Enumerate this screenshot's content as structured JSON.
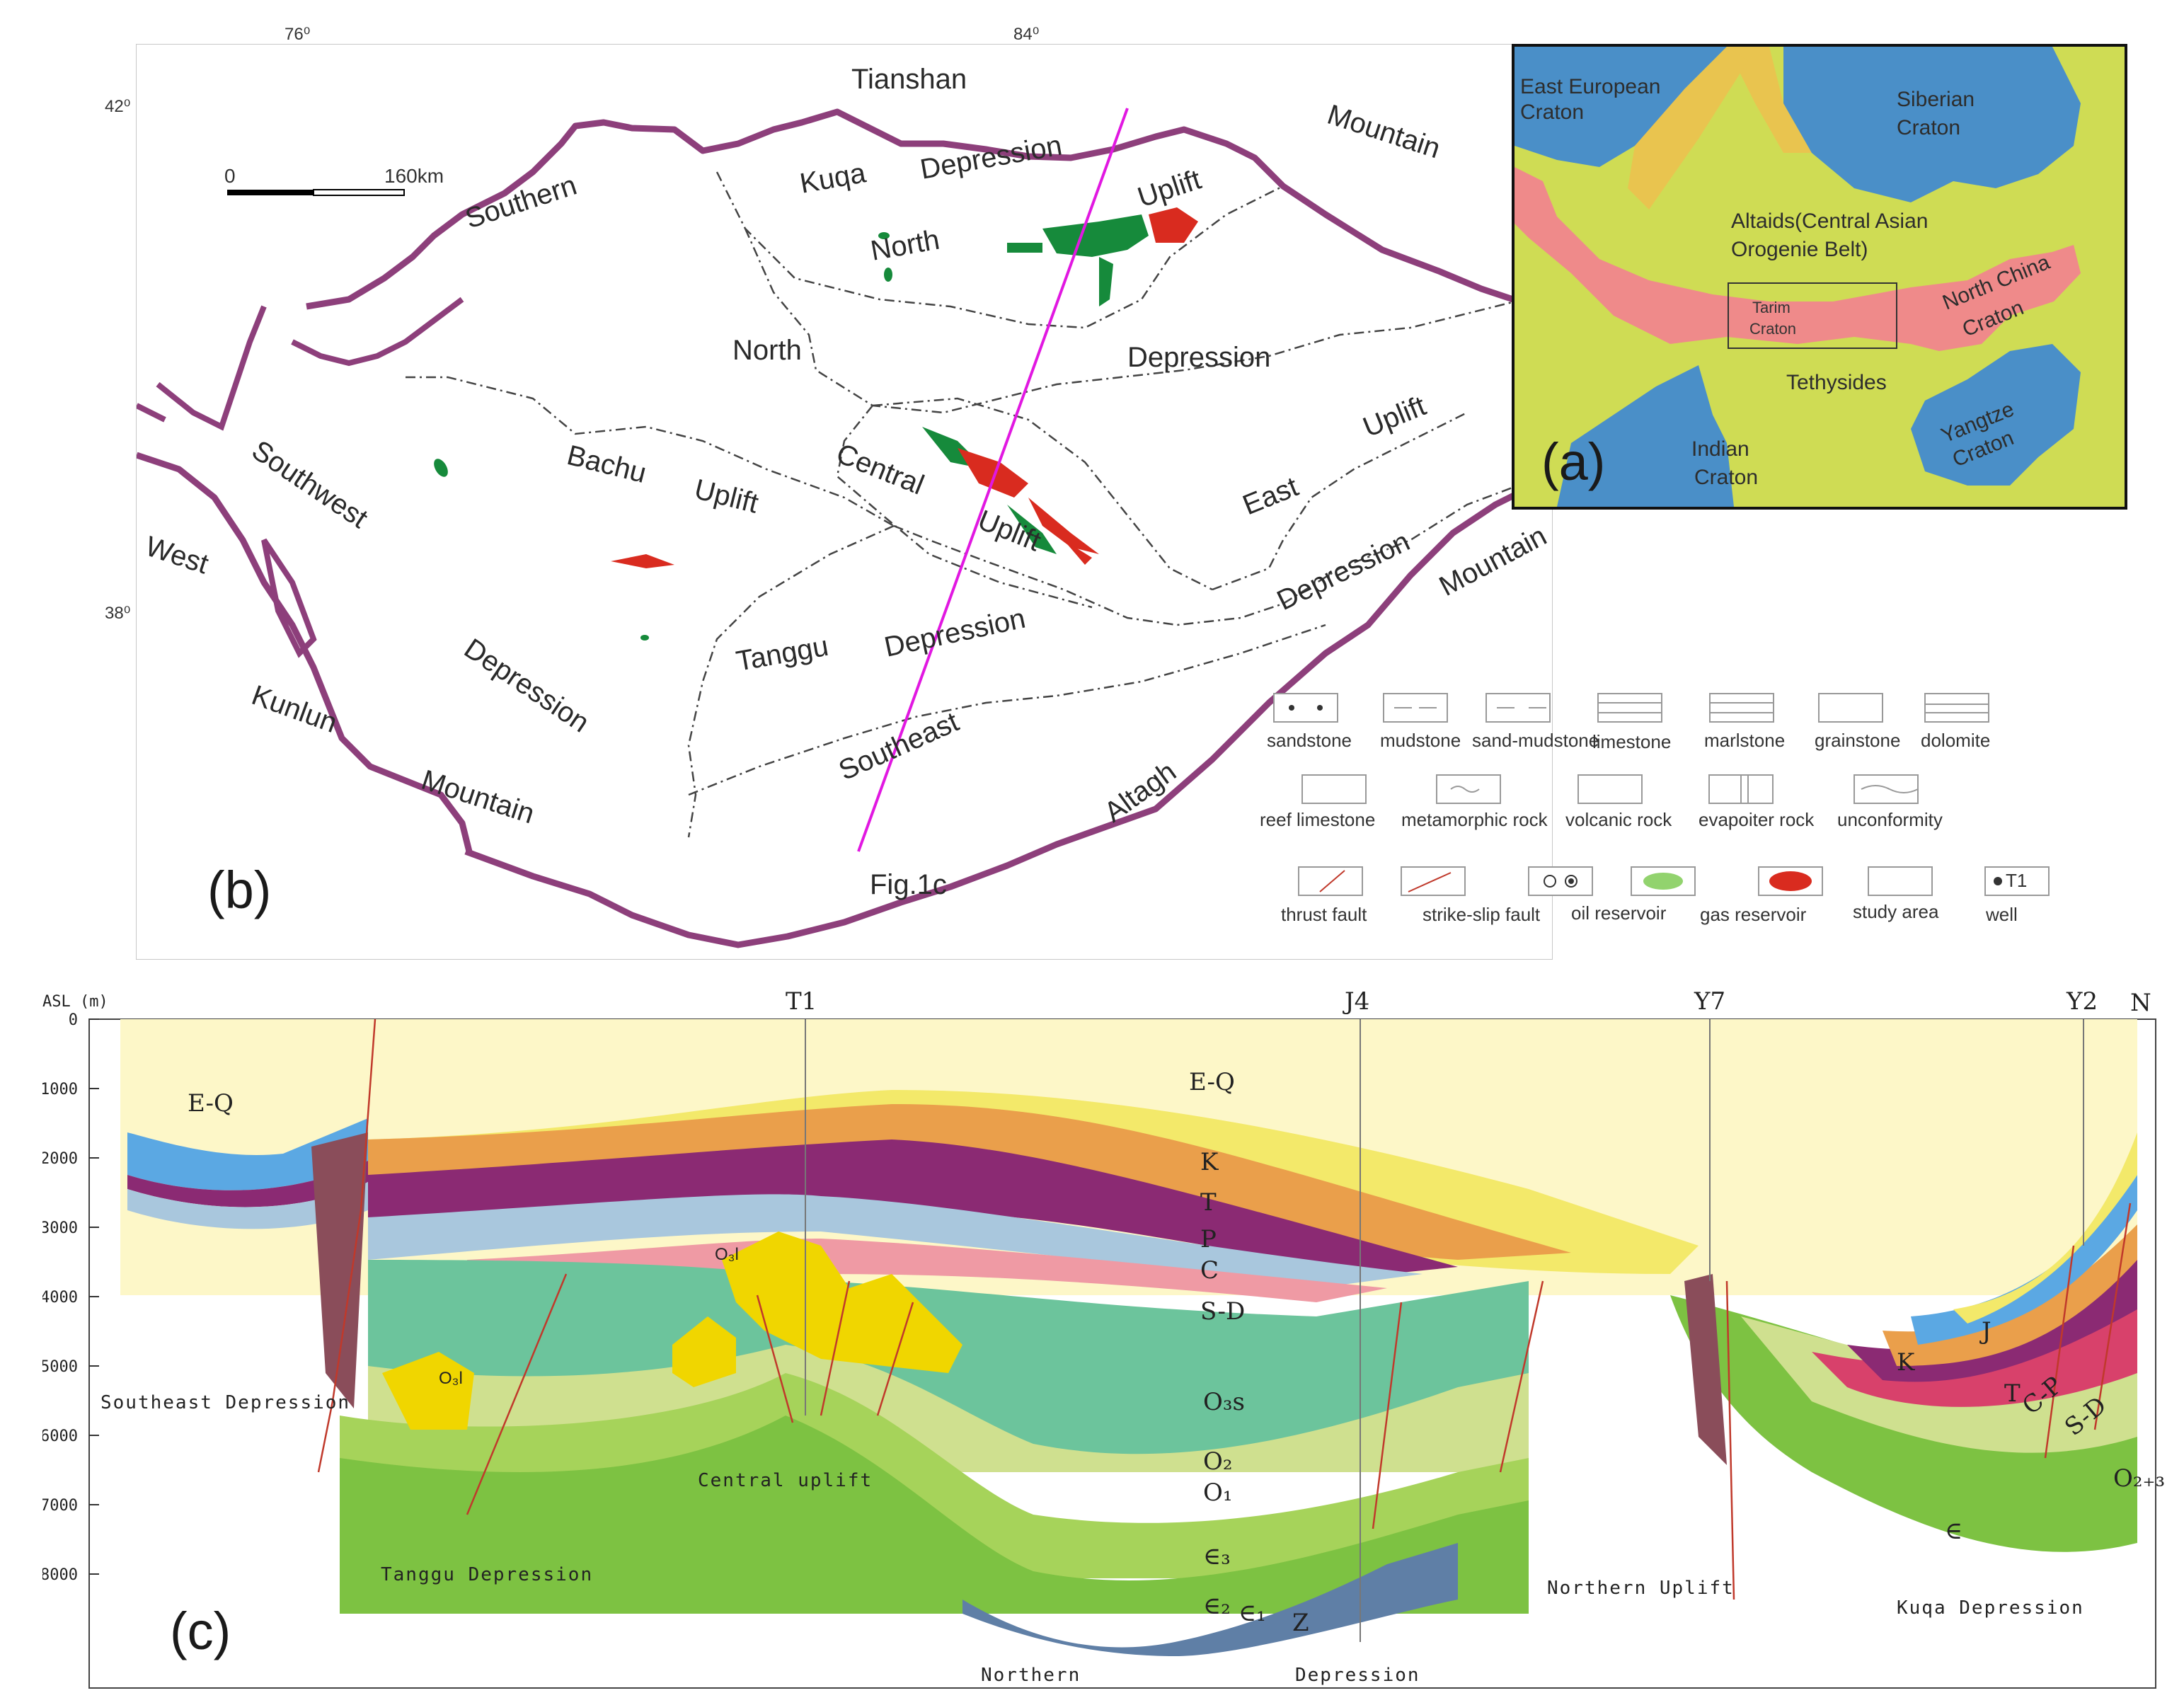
{
  "map": {
    "panel_label": "(b)",
    "coords": {
      "lon1": "76⁰",
      "lon2": "84⁰",
      "lat1": "42⁰",
      "lat2": "38⁰"
    },
    "scale": {
      "start": "0",
      "end": "160km"
    },
    "profile_label": "Fig.1c",
    "labels": {
      "tianshan": "Tianshan",
      "mountain_ne": "Mountain",
      "southern": "Southern",
      "kuqa": "Kuqa",
      "depression_kuqa": "Depression",
      "uplift_north": "Uplift",
      "north_uplift": "North",
      "north_dep": "North",
      "depression_north": "Depression",
      "bachu": "Bachu",
      "uplift_bachu": "Uplift",
      "central": "Central",
      "uplift_central": "Uplift",
      "southwest": "Southwest",
      "west": "West",
      "east": "East",
      "uplift_east": "Uplift",
      "tanggu": "Tanggu",
      "depression_tanggu": "Depression",
      "depression_east": "Depression",
      "mountain_e": "Mountain",
      "depression_sw": "Depression",
      "kunlun": "Kunlun",
      "mountain_s": "Mountain",
      "southeast": "Southeast",
      "altagh": "Altagh"
    }
  },
  "inset": {
    "panel_label": "(a)",
    "east_european": [
      "East European",
      "Craton"
    ],
    "siberian": [
      "Siberian",
      "Craton"
    ],
    "altaids": [
      "Altaids(Central Asian",
      "Orogenie Belt)"
    ],
    "tarim": [
      "Tarim",
      "Craton"
    ],
    "north_china": [
      "North China",
      "Craton"
    ],
    "tethysides": "Tethysides",
    "indian": [
      "Indian",
      "Craton"
    ],
    "yangtze": [
      "Yangtze",
      "Craton"
    ],
    "colors": {
      "craton": "#4a8fc8",
      "altaids": "#cfdc54",
      "ncc": "#ef8a8a",
      "yellow": "#e9c44f"
    }
  },
  "legend": {
    "items": [
      "sandstone",
      "mudstone",
      "sand-mudstone",
      "limestone",
      "marlstone",
      "grainstone",
      "dolomite",
      "reef limestone",
      "metamorphic rock",
      "volcanic rock",
      "evapoiter rock",
      "unconformity",
      "thrust fault",
      "strike-slip fault",
      "oil reservoir",
      "gas reservoir",
      "study area",
      "T1"
    ],
    "well_label": "well"
  },
  "section": {
    "panel_label": "(c)",
    "axis_title": "ASL (m)",
    "depths": [
      "0",
      "-1000",
      "-2000",
      "-3000",
      "-4000",
      "-5000",
      "-6000",
      "-7000",
      "-8000"
    ],
    "wells": [
      "T1",
      "J4",
      "Y7",
      "Y2"
    ],
    "north_arrow": "N",
    "units": {
      "eq_left": "E-Q",
      "eq": "E-Q",
      "k": "K",
      "t": "T",
      "p": "P",
      "c": "C",
      "sd": "S-D",
      "o3s": "O₃s",
      "o2": "O₂",
      "o1": "O₁",
      "e3": "∈₃",
      "e2": "∈₂",
      "e1": "∈₁",
      "z": "Z",
      "o3l_a": "O₃l",
      "o3l_b": "O₃l",
      "k_r": "K",
      "j_r": "J",
      "t_r": "T",
      "cp_r": "C-P",
      "sd_r": "S-D",
      "o23_r": "O₂₊₃",
      "e_r": "∈"
    },
    "regions": {
      "southeast": "Southeast Depression",
      "central": "Central uplift",
      "tanggu": "Tanggu Depression",
      "northern": "Northern",
      "depression": "Depression",
      "northern_uplift": "Northern Uplift",
      "kuqa": "Kuqa Depression"
    }
  }
}
